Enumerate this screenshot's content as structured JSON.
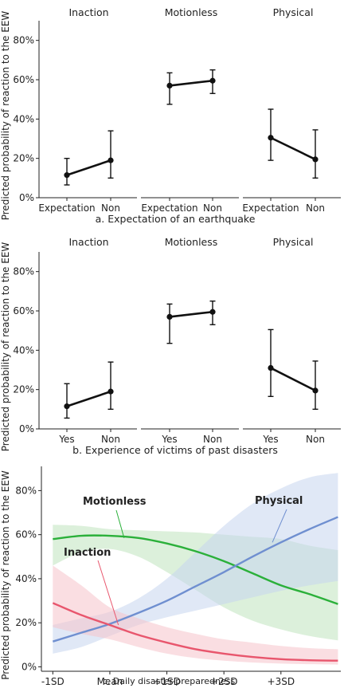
{
  "ylabel": "Predicted probability of reaction to the EEW",
  "chart_data": [
    {
      "type": "line",
      "panel": "a",
      "xlabel": "a. Expectation of an earthquake",
      "facets": [
        "Inaction",
        "Motionless",
        "Physical"
      ],
      "categories": [
        "Expectation",
        "Non"
      ],
      "ylim": [
        0,
        0.9
      ],
      "yticks": [
        0,
        0.2,
        0.4,
        0.6,
        0.8
      ],
      "ytick_labels": [
        "0%",
        "20%",
        "40%",
        "60%",
        "80%"
      ],
      "series": [
        {
          "facet": "Inaction",
          "values": [
            0.115,
            0.19
          ],
          "lower": [
            0.065,
            0.1
          ],
          "upper": [
            0.2,
            0.34
          ]
        },
        {
          "facet": "Motionless",
          "values": [
            0.57,
            0.595
          ],
          "lower": [
            0.475,
            0.53
          ],
          "upper": [
            0.635,
            0.65
          ]
        },
        {
          "facet": "Physical",
          "values": [
            0.305,
            0.195
          ],
          "lower": [
            0.19,
            0.1
          ],
          "upper": [
            0.45,
            0.345
          ]
        }
      ]
    },
    {
      "type": "line",
      "panel": "b",
      "xlabel": "b. Experience of victims of past disasters",
      "facets": [
        "Inaction",
        "Motionless",
        "Physical"
      ],
      "categories": [
        "Yes",
        "Non"
      ],
      "ylim": [
        0,
        0.9
      ],
      "yticks": [
        0,
        0.2,
        0.4,
        0.6,
        0.8
      ],
      "ytick_labels": [
        "0%",
        "20%",
        "40%",
        "60%",
        "80%"
      ],
      "series": [
        {
          "facet": "Inaction",
          "values": [
            0.115,
            0.19
          ],
          "lower": [
            0.055,
            0.1
          ],
          "upper": [
            0.23,
            0.34
          ]
        },
        {
          "facet": "Motionless",
          "values": [
            0.57,
            0.595
          ],
          "lower": [
            0.435,
            0.53
          ],
          "upper": [
            0.635,
            0.65
          ]
        },
        {
          "facet": "Physical",
          "values": [
            0.31,
            0.195
          ],
          "lower": [
            0.165,
            0.1
          ],
          "upper": [
            0.505,
            0.345
          ]
        }
      ]
    },
    {
      "type": "area",
      "panel": "c",
      "xlabel": "c. Daily disaster-preparedness",
      "x": [
        -1,
        -0.5,
        0,
        0.5,
        1,
        1.5,
        2,
        2.5,
        3,
        3.5,
        4
      ],
      "xticks": [
        -1,
        0,
        1,
        2,
        3
      ],
      "xtick_labels": [
        "-1SD",
        "Mean",
        "+1SD",
        "+2SD",
        "+3SD"
      ],
      "xlim": [
        -1.2,
        4.05
      ],
      "ylim": [
        -0.02,
        0.91
      ],
      "yticks": [
        0,
        0.2,
        0.4,
        0.6,
        0.8
      ],
      "ytick_labels": [
        "0%",
        "20%",
        "40%",
        "60%",
        "80%"
      ],
      "series": [
        {
          "name": "Motionless",
          "color": "#2bb03a",
          "fill": "#bfe3bd",
          "values": [
            0.58,
            0.595,
            0.595,
            0.585,
            0.56,
            0.525,
            0.48,
            0.425,
            0.37,
            0.33,
            0.285
          ],
          "lower": [
            0.46,
            0.52,
            0.535,
            0.5,
            0.43,
            0.35,
            0.27,
            0.21,
            0.17,
            0.14,
            0.12
          ],
          "upper": [
            0.645,
            0.64,
            0.625,
            0.62,
            0.615,
            0.61,
            0.6,
            0.59,
            0.58,
            0.55,
            0.53
          ]
        },
        {
          "name": "Physical",
          "color": "#6f8fd0",
          "fill": "#c7d5ef",
          "values": [
            0.115,
            0.155,
            0.195,
            0.245,
            0.3,
            0.365,
            0.43,
            0.5,
            0.565,
            0.625,
            0.68
          ],
          "lower": [
            0.06,
            0.09,
            0.14,
            0.19,
            0.225,
            0.255,
            0.285,
            0.315,
            0.345,
            0.37,
            0.39
          ],
          "upper": [
            0.19,
            0.22,
            0.25,
            0.31,
            0.4,
            0.52,
            0.64,
            0.74,
            0.81,
            0.86,
            0.88
          ]
        },
        {
          "name": "Inaction",
          "color": "#e8566d",
          "fill": "#f5c2cb",
          "values": [
            0.29,
            0.235,
            0.19,
            0.145,
            0.11,
            0.08,
            0.06,
            0.045,
            0.035,
            0.03,
            0.028
          ],
          "lower": [
            0.18,
            0.15,
            0.125,
            0.09,
            0.06,
            0.04,
            0.028,
            0.02,
            0.015,
            0.012,
            0.01
          ],
          "upper": [
            0.46,
            0.37,
            0.27,
            0.22,
            0.18,
            0.15,
            0.125,
            0.11,
            0.095,
            0.085,
            0.08
          ]
        }
      ]
    }
  ]
}
